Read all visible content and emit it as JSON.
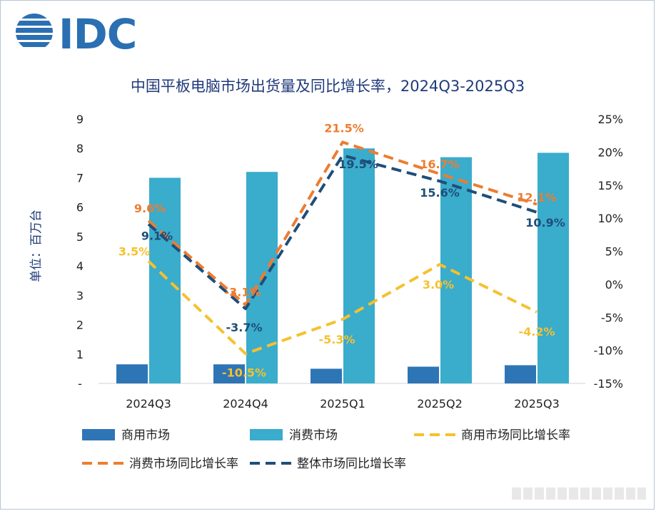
{
  "logo": {
    "text": "IDC",
    "color": "#2b6fb3"
  },
  "chart_data": {
    "type": "bar",
    "title": "中国平板电脑市场出货量及同比增长率，2024Q3-2025Q3",
    "categories": [
      "2024Q3",
      "2024Q4",
      "2025Q1",
      "2025Q2",
      "2025Q3"
    ],
    "ylabel": "单位：百万台",
    "ylim": [
      0,
      9
    ],
    "y_ticks": [
      "-",
      "1",
      "2",
      "3",
      "4",
      "5",
      "6",
      "7",
      "8",
      "9"
    ],
    "y2lim": [
      -15,
      25
    ],
    "y2_ticks": [
      "-15%",
      "-10%",
      "-5%",
      "0%",
      "5%",
      "10%",
      "15%",
      "20%",
      "25%"
    ],
    "grid": false,
    "legend_position": "bottom",
    "bar_series": [
      {
        "name": "商用市场",
        "values": [
          0.65,
          0.65,
          0.5,
          0.57,
          0.62
        ],
        "color": "#2e75b6"
      },
      {
        "name": "消费市场",
        "values": [
          7.0,
          7.2,
          8.0,
          7.7,
          7.85
        ],
        "color": "#3aaccc"
      }
    ],
    "line_series": [
      {
        "name": "商用市场同比增长率",
        "values": [
          3.5,
          -10.5,
          -5.3,
          3.0,
          -4.2
        ],
        "labels": [
          "3.5%",
          "-10.5%",
          "-5.3%",
          "3.0%",
          "-4.2%"
        ],
        "color": "#f5c12e"
      },
      {
        "name": "消费市场同比增长率",
        "values": [
          9.6,
          -3.1,
          21.5,
          16.7,
          12.1
        ],
        "labels": [
          "9.6%",
          "-3.1%",
          "21.5%",
          "16.7%",
          "12.1%"
        ],
        "color": "#ed7d31"
      },
      {
        "name": "整体市场同比增长率",
        "values": [
          9.1,
          -3.7,
          19.5,
          15.6,
          10.9
        ],
        "labels": [
          "9.1%",
          "-3.7%",
          "19.5%",
          "15.6%",
          "10.9%"
        ],
        "color": "#1f4e79"
      }
    ]
  }
}
